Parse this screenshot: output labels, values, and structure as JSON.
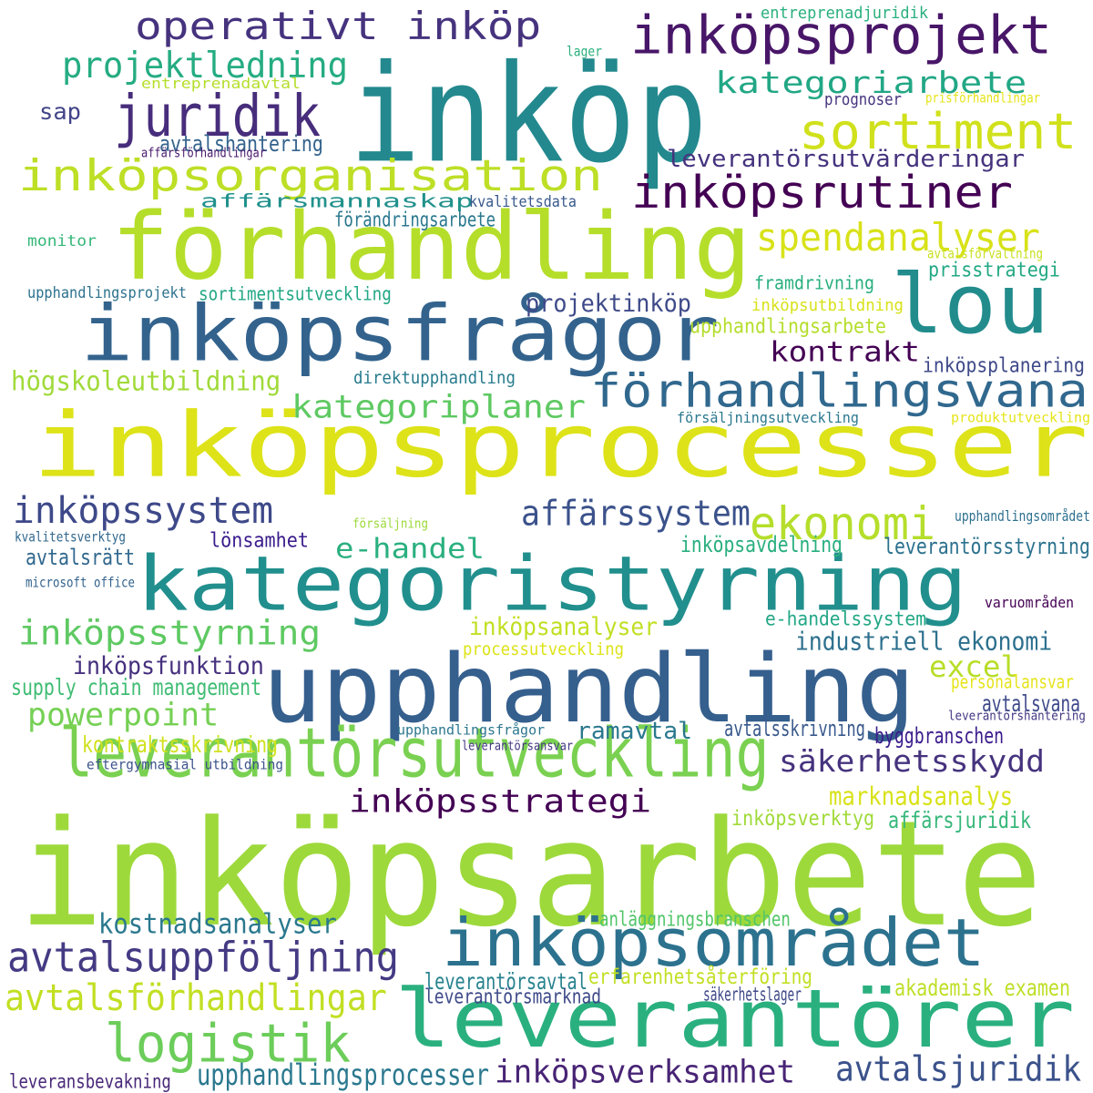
{
  "words": [
    {
      "id": "inkopsprocesser",
      "text": "inköpsprocesser",
      "color": "#dde318"
    },
    {
      "id": "inkopsarbete",
      "text": "inköpsarbete",
      "color": "#9dd93b"
    },
    {
      "id": "inkop",
      "text": "inköp",
      "color": "#23898e"
    },
    {
      "id": "forhandling",
      "text": "förhandling",
      "color": "#b5de2b"
    },
    {
      "id": "upphandling",
      "text": "upphandling",
      "color": "#355f8d"
    },
    {
      "id": "kategoristyrning",
      "text": "kategoristyrning",
      "color": "#218f8d"
    },
    {
      "id": "inkopsfragor",
      "text": "inköpsfrågor",
      "color": "#33638d"
    },
    {
      "id": "leverantorer",
      "text": "leverantörer",
      "color": "#2ab07f"
    },
    {
      "id": "lou",
      "text": "lou",
      "color": "#228c8d"
    },
    {
      "id": "inkopsomradet",
      "text": "inköpsområdet",
      "color": "#2c728e"
    },
    {
      "id": "leverantorsutveckling",
      "text": "leverantörsutveckling",
      "color": "#7ad151"
    },
    {
      "id": "inkopsorganisation",
      "text": "inköpsorganisation",
      "color": "#bddf26"
    },
    {
      "id": "inkopsprojekt",
      "text": "inköpsprojekt",
      "color": "#481668"
    },
    {
      "id": "sortiment",
      "text": "sortiment",
      "color": "#d0e11c"
    },
    {
      "id": "juridik",
      "text": "juridik",
      "color": "#472d7b"
    },
    {
      "id": "operativt-inkop",
      "text": "operativt inköp",
      "color": "#46337e"
    },
    {
      "id": "inkopsrutiner",
      "text": "inköpsrutiner",
      "color": "#440154"
    },
    {
      "id": "forhandlingsvana",
      "text": "förhandlingsvana",
      "color": "#31688e"
    },
    {
      "id": "logistik",
      "text": "logistik",
      "color": "#6ccd5a"
    },
    {
      "id": "avtalsuppfoljning",
      "text": "avtalsuppföljning",
      "color": "#443a83"
    },
    {
      "id": "avtalsforhandlingar",
      "text": "avtalsförhandlingar",
      "color": "#c2df23"
    },
    {
      "id": "inkopssystem",
      "text": "inköpssystem",
      "color": "#3e4989"
    },
    {
      "id": "inkopsstyrning",
      "text": "inköpsstyrning",
      "color": "#5ec962"
    },
    {
      "id": "ekonomi",
      "text": "ekonomi",
      "color": "#b5de2b"
    },
    {
      "id": "spendanalyser",
      "text": "spendanalyser",
      "color": "#d8e219"
    },
    {
      "id": "kategoriarbete",
      "text": "kategoriarbete",
      "color": "#22a785"
    },
    {
      "id": "projektledning",
      "text": "projektledning",
      "color": "#25ac82"
    },
    {
      "id": "kategoriplaner",
      "text": "kategoriplaner",
      "color": "#5ec962"
    },
    {
      "id": "affarssystem",
      "text": "affärssystem",
      "color": "#3b528b"
    },
    {
      "id": "e-handel",
      "text": "e-handel",
      "color": "#2ab07f"
    },
    {
      "id": "powerpoint",
      "text": "powerpoint",
      "color": "#75d054"
    },
    {
      "id": "inkopsstrategi",
      "text": "inköpsstrategi",
      "color": "#440154"
    },
    {
      "id": "inkopsverksamhet",
      "text": "inköpsverksamhet",
      "color": "#482475"
    },
    {
      "id": "avtalsjuridik",
      "text": "avtalsjuridik",
      "color": "#3b528b"
    },
    {
      "id": "upphandlingsprocesser",
      "text": "upphandlingsprocesser",
      "color": "#2a788e"
    },
    {
      "id": "kostnadsanalyser",
      "text": "kostnadsanalyser",
      "color": "#2a788e"
    },
    {
      "id": "sakerhetsskydd",
      "text": "säkerhetsskydd",
      "color": "#46337e"
    },
    {
      "id": "kontrakt",
      "text": "kontrakt",
      "color": "#440154"
    },
    {
      "id": "excel",
      "text": "excel",
      "color": "#b8de29"
    },
    {
      "id": "hogskoleutbildning",
      "text": "högskoleutbildning",
      "color": "#a0da39"
    },
    {
      "id": "inkopsfunktion",
      "text": "inköpsfunktion",
      "color": "#46307e"
    },
    {
      "id": "industriell-ekonomi",
      "text": "industriell ekonomi",
      "color": "#2d708e"
    },
    {
      "id": "marknadsanalys",
      "text": "marknadsanalys",
      "color": "#d8e219"
    },
    {
      "id": "ramavtal",
      "text": "ramavtal",
      "color": "#2a788e"
    },
    {
      "id": "inkopsanalyser",
      "text": "inköpsanalyser",
      "color": "#c2df23"
    },
    {
      "id": "projektinkop",
      "text": "projektinköp",
      "color": "#3e4a89"
    },
    {
      "id": "avtalsratt",
      "text": "avtalsrätt",
      "color": "#31688e"
    },
    {
      "id": "lonsamhet",
      "text": "lönsamhet",
      "color": "#3b1c8c"
    },
    {
      "id": "inkopsavdelning",
      "text": "inköpsavdelning",
      "color": "#29af7f"
    },
    {
      "id": "leverantorsstyrning",
      "text": "leverantörsstyrning",
      "color": "#2c728e"
    },
    {
      "id": "supply-chain-management",
      "text": "supply chain management",
      "color": "#3fbc73"
    },
    {
      "id": "avtalsvana",
      "text": "avtalsvana",
      "color": "#3e4989"
    },
    {
      "id": "avtalsskrivning",
      "text": "avtalsskrivning",
      "color": "#38598c"
    },
    {
      "id": "byggbranschen",
      "text": "byggbranschen",
      "color": "#3b1c8c"
    },
    {
      "id": "kontraktsskrivning",
      "text": "kontraktsskrivning",
      "color": "#d0e11c"
    },
    {
      "id": "inkopsverktyg",
      "text": "inköpsverktyg",
      "color": "#a0da39"
    },
    {
      "id": "affarsjuridik",
      "text": "affärsjuridik",
      "color": "#35b779"
    },
    {
      "id": "akademisk-examen",
      "text": "akademisk examen",
      "color": "#bddf26"
    },
    {
      "id": "leverantorsavtal",
      "text": "leverantörsavtal",
      "color": "#26828e"
    },
    {
      "id": "leverantorsmarknad",
      "text": "leverantörsmarknad",
      "color": "#3e4a89"
    },
    {
      "id": "erfarenhetsaterforing",
      "text": "erfarenhetsåterföring",
      "color": "#c2df23"
    },
    {
      "id": "anlaggningsbranschen",
      "text": "anläggningsbranschen",
      "color": "#52c569"
    },
    {
      "id": "sakerhetslager",
      "text": "säkerhetslager",
      "color": "#3e4989"
    },
    {
      "id": "leveransbevakning",
      "text": "leveransbevakning",
      "color": "#482878"
    },
    {
      "id": "avtalshantering",
      "text": "avtalshantering",
      "color": "#33638d"
    },
    {
      "id": "affarsmannaskap",
      "text": "affärsmannaskap",
      "color": "#21918c"
    },
    {
      "id": "kvalitetsdata",
      "text": "kvalitetsdata",
      "color": "#38598c"
    },
    {
      "id": "forandringsarbete",
      "text": "förändringsarbete",
      "color": "#2a788e"
    },
    {
      "id": "leverantorsutvarderingar",
      "text": "leverantörsutvärderingar",
      "color": "#46337e"
    },
    {
      "id": "framdrivning",
      "text": "framdrivning",
      "color": "#29af7f"
    },
    {
      "id": "prisstrategi",
      "text": "prisstrategi",
      "color": "#23a983"
    },
    {
      "id": "inkopsutbildning",
      "text": "inköpsutbildning",
      "color": "#d8e219"
    },
    {
      "id": "upphandlingsarbete",
      "text": "upphandlingsarbete",
      "color": "#b5de2b"
    },
    {
      "id": "sortimentsutveckling",
      "text": "sortimentsutveckling",
      "color": "#22a785"
    },
    {
      "id": "upphandlingsprojekt",
      "text": "upphandlingsprojekt",
      "color": "#2c728e"
    },
    {
      "id": "monitor",
      "text": "monitor",
      "color": "#35b779"
    },
    {
      "id": "direktupphandling",
      "text": "direktupphandling",
      "color": "#287c8e"
    },
    {
      "id": "inkopsplanering",
      "text": "inköpsplanering",
      "color": "#3e4989"
    },
    {
      "id": "forsaljningsutveckling",
      "text": "försäljningsutveckling",
      "color": "#2a788e"
    },
    {
      "id": "produktutveckling",
      "text": "produktutveckling",
      "color": "#e5e419"
    },
    {
      "id": "upphandlingsomradet",
      "text": "upphandlingsområdet",
      "color": "#2d708e"
    },
    {
      "id": "forsaljning",
      "text": "försäljning",
      "color": "#9dd93b"
    },
    {
      "id": "kvalitetsverktyg",
      "text": "kvalitetsverktyg",
      "color": "#31688e"
    },
    {
      "id": "microsoft-office",
      "text": "microsoft office",
      "color": "#33638d"
    },
    {
      "id": "varuomraden",
      "text": "varuområden",
      "color": "#440154"
    },
    {
      "id": "e-handelssystem",
      "text": "e-handelssystem",
      "color": "#22a785"
    },
    {
      "id": "processutveckling",
      "text": "processutveckling",
      "color": "#dde318"
    },
    {
      "id": "personalansvar",
      "text": "personalansvar",
      "color": "#e5e419"
    },
    {
      "id": "leverantorshantering",
      "text": "leverantörshantering",
      "color": "#443983"
    },
    {
      "id": "upphandlingsfragor",
      "text": "upphandlingsfrågor",
      "color": "#2a768e"
    },
    {
      "id": "leverantorsansvar",
      "text": "leverantörsansvar",
      "color": "#443983"
    },
    {
      "id": "eftergymnasial-utbildning",
      "text": "eftergymnasial utbildning",
      "color": "#3b528b"
    },
    {
      "id": "sap",
      "text": "sap",
      "color": "#414487"
    },
    {
      "id": "entreprenadavtal",
      "text": "entreprenadavtal",
      "color": "#b5de2b"
    },
    {
      "id": "lager",
      "text": "lager",
      "color": "#2ab07f"
    },
    {
      "id": "affarsforhandlingar",
      "text": "affärsförhandlingar",
      "color": "#481a6c"
    },
    {
      "id": "prognoser",
      "text": "prognoser",
      "color": "#46337e"
    },
    {
      "id": "prisforhandlingar",
      "text": "prisförhandlingar",
      "color": "#e5e419"
    },
    {
      "id": "entreprenadjuridik",
      "text": "entreprenadjuridik",
      "color": "#2ab07f"
    },
    {
      "id": "avtalsforvaltning",
      "text": "avtalsförvaltning",
      "color": "#c8e020"
    }
  ]
}
